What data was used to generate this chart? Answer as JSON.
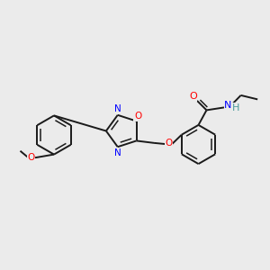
{
  "background_color": "#ebebeb",
  "bond_color": "#1a1a1a",
  "nitrogen_color": "#0000ff",
  "oxygen_color": "#ff0000",
  "nh_color": "#4a9a9a",
  "figsize": [
    3.0,
    3.0
  ],
  "dpi": 100,
  "xlim": [
    0,
    10
  ],
  "ylim": [
    0,
    10
  ]
}
